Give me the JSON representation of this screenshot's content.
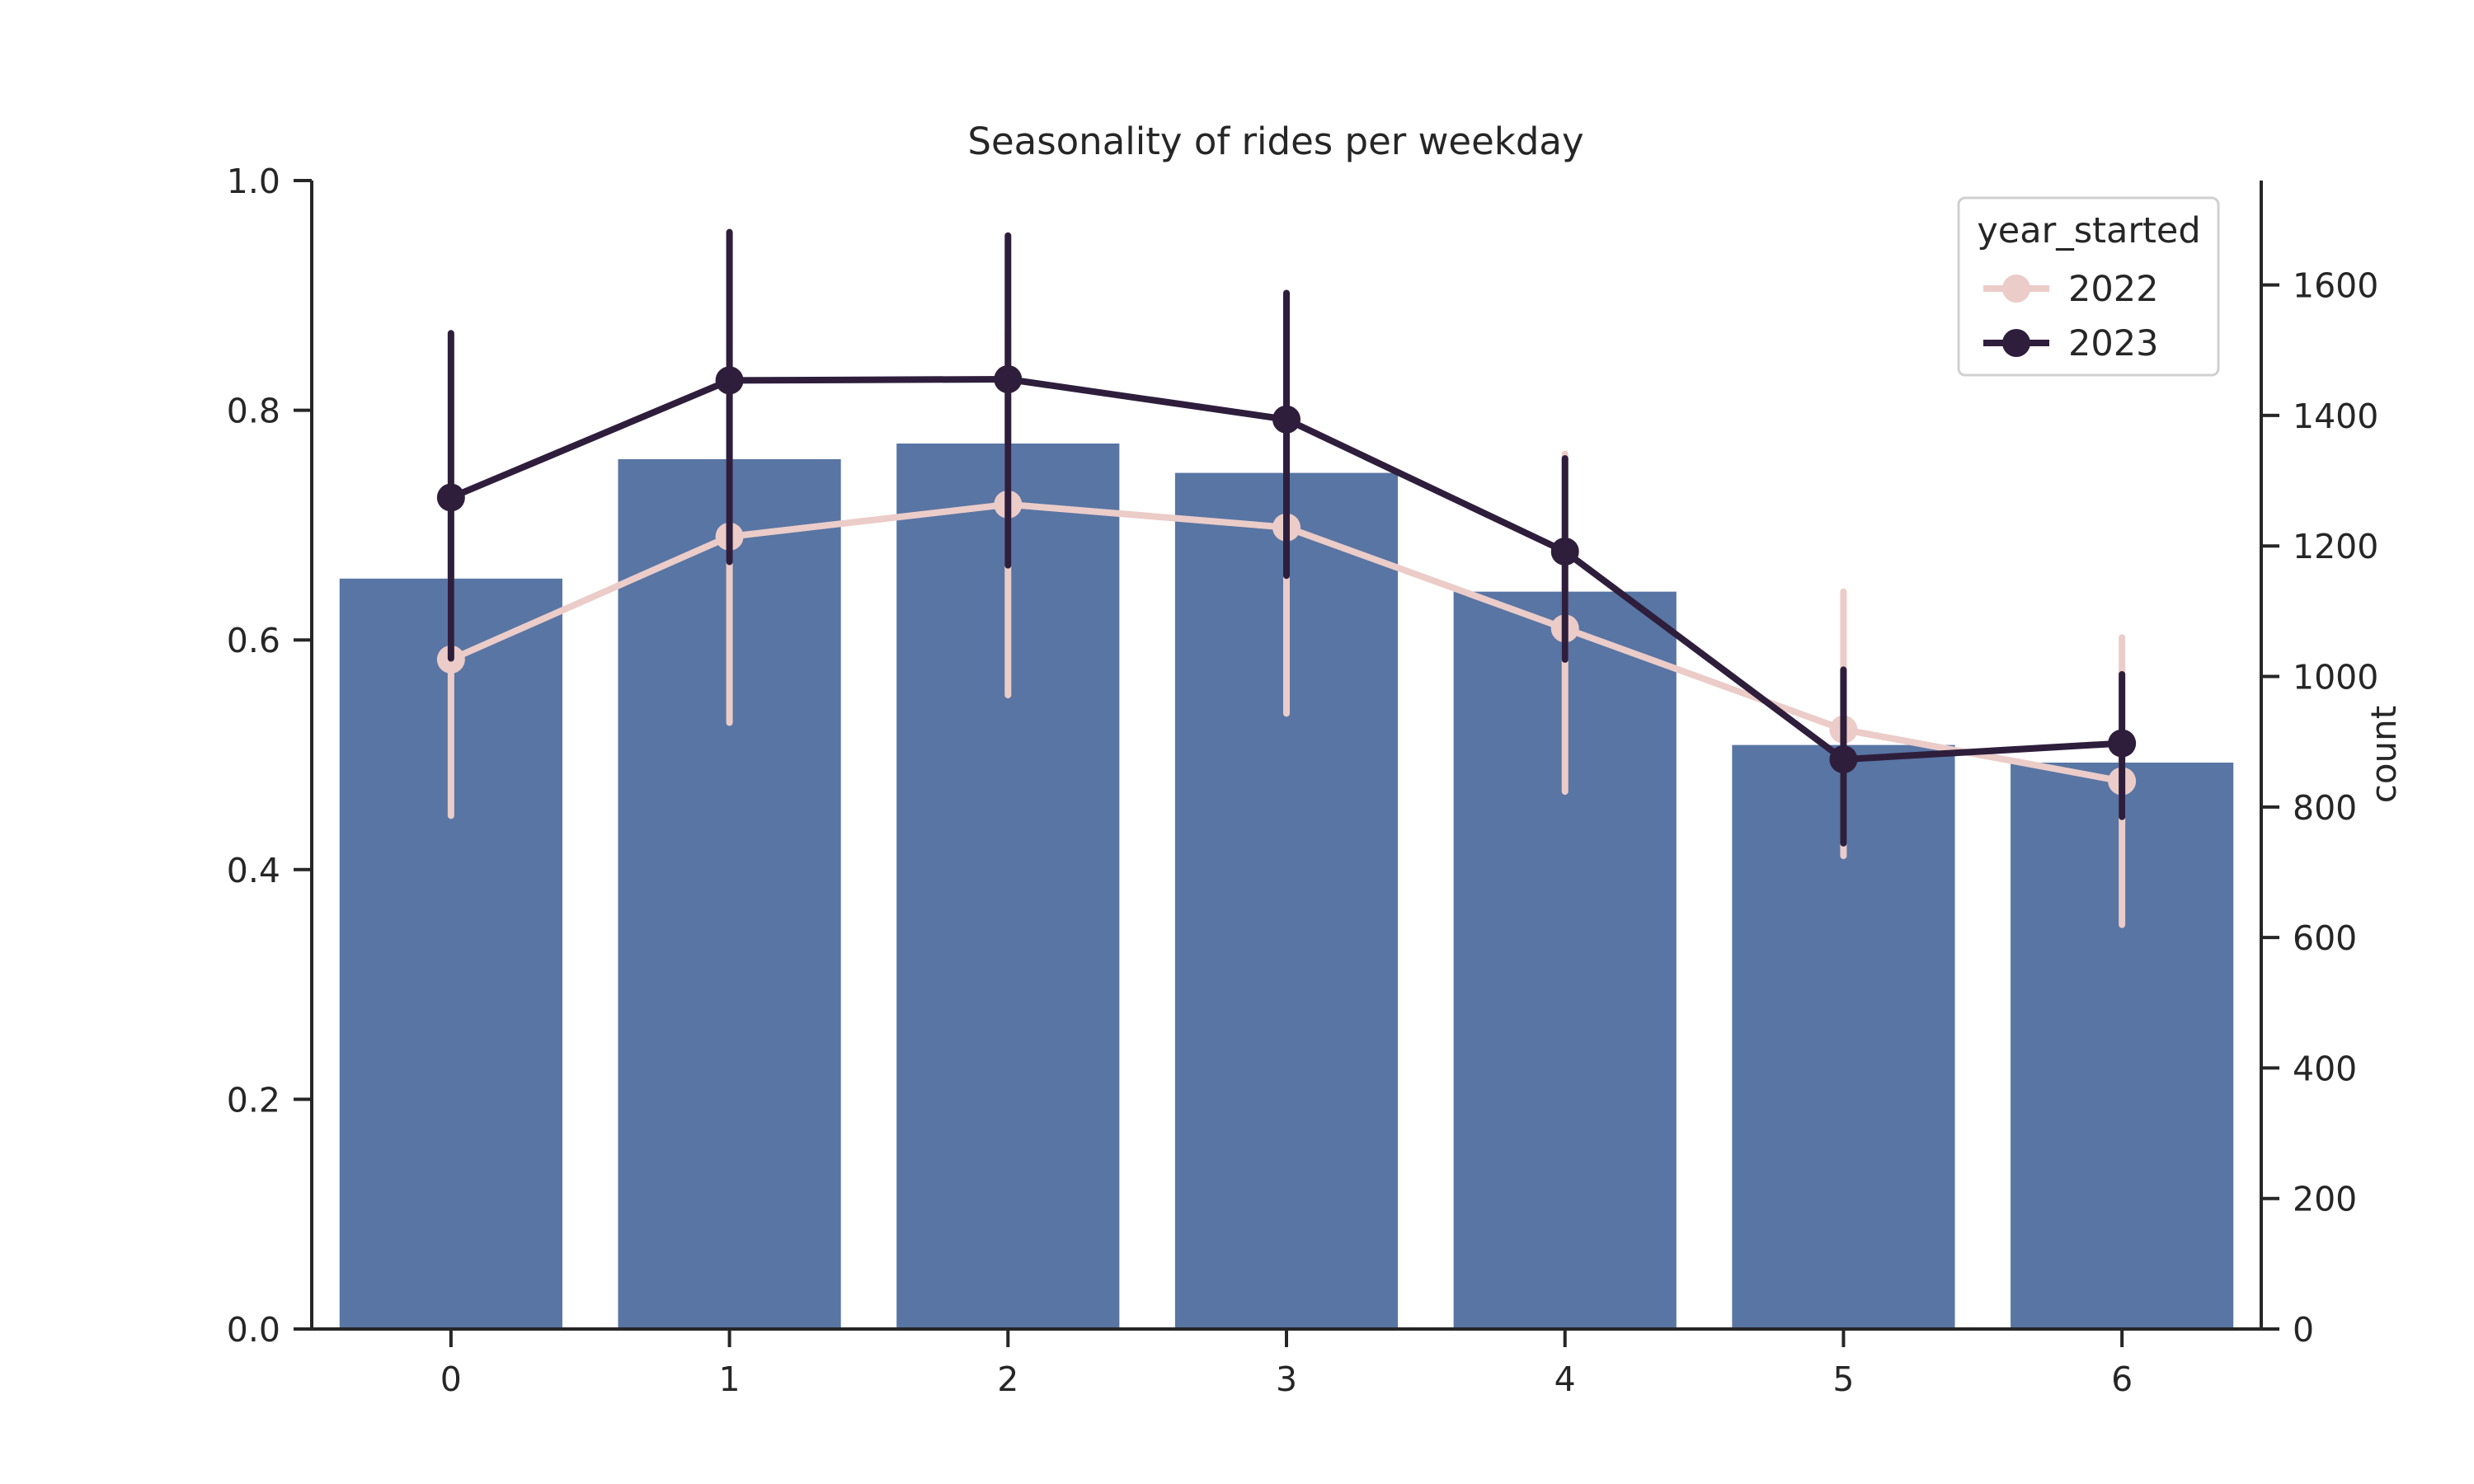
{
  "chart_data": {
    "type": "bar",
    "title": "Seasonality of rides per weekday",
    "categories": [
      "0",
      "1",
      "2",
      "3",
      "4",
      "5",
      "6"
    ],
    "left_axis": {
      "range": [
        0,
        1
      ],
      "ticks": [
        "0.0",
        "0.2",
        "0.4",
        "0.6",
        "0.8",
        "1.0"
      ],
      "tick_values": [
        0,
        0.2,
        0.4,
        0.6,
        0.8,
        1.0
      ],
      "label": ""
    },
    "right_axis": {
      "label": "count",
      "range": [
        0,
        1760
      ],
      "ticks": [
        "0",
        "200",
        "400",
        "600",
        "800",
        "1000",
        "1200",
        "1400",
        "1600"
      ],
      "tick_values": [
        0,
        200,
        400,
        600,
        800,
        1000,
        1200,
        1400,
        1600
      ]
    },
    "bars": {
      "axis": "right",
      "values": [
        1150,
        1333,
        1357,
        1312,
        1130,
        895,
        868
      ],
      "color": "#5875a4"
    },
    "series": [
      {
        "name": "2022",
        "axis": "left",
        "color": "#ecccc8",
        "values": [
          0.583,
          0.69,
          0.718,
          0.698,
          0.61,
          0.522,
          0.477
        ],
        "ci_low": [
          0.447,
          0.528,
          0.552,
          0.536,
          0.468,
          0.412,
          0.352
        ],
        "ci_high": [
          0.706,
          0.857,
          0.869,
          0.856,
          0.762,
          0.642,
          0.602
        ]
      },
      {
        "name": "2023",
        "axis": "left",
        "color": "#2e1e3c",
        "values": [
          0.724,
          0.826,
          0.827,
          0.792,
          0.677,
          0.496,
          0.51
        ],
        "ci_low": [
          0.584,
          0.668,
          0.665,
          0.656,
          0.583,
          0.423,
          0.446
        ],
        "ci_high": [
          0.867,
          0.955,
          0.952,
          0.902,
          0.758,
          0.574,
          0.57
        ]
      }
    ],
    "legend": {
      "title": "year_started",
      "placement": "top-right",
      "entries": [
        "2022",
        "2023"
      ]
    },
    "grid": false
  }
}
